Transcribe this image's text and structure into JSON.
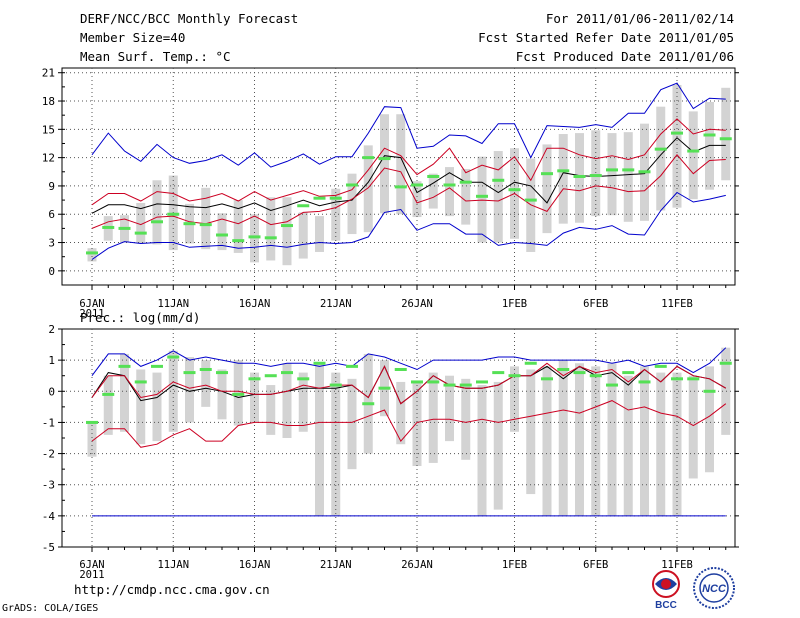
{
  "header": {
    "title": "DERF/NCC/BCC Monthly Forecast",
    "member_size": "Member Size=40",
    "variable": "Mean Surf. Temp.: °C",
    "forecast_period": "For 2011/01/06-2011/02/14",
    "refer_date": "Fcst Started Refer Date 2011/01/05",
    "produced_date": "Fcst Produced Date 2011/01/06"
  },
  "footer": {
    "url": "http://cmdp.ncc.cma.gov.cn",
    "credit": "GrADS: COLA/IGES",
    "logo_bcc": "BCC",
    "logo_ncc": "NCC"
  },
  "colors": {
    "spread": "#d3d3d3",
    "envelope": "#0000cc",
    "quartile": "#cc0022",
    "mean": "#000000",
    "member_mark": "#55e055",
    "grid": "#555555"
  },
  "chart_data": [
    {
      "type": "line",
      "title": "Mean Surf. Temp.: °C",
      "x_tick_labels": [
        "6JAN",
        "11JAN",
        "16JAN",
        "21JAN",
        "26JAN",
        "1FEB",
        "6FEB",
        "11FEB"
      ],
      "x_tick_index": [
        0,
        5,
        10,
        15,
        20,
        26,
        31,
        36
      ],
      "x_sublabel": "2011",
      "ylim": [
        -1.5,
        21.5
      ],
      "yticks": [
        0,
        3,
        6,
        9,
        12,
        15,
        18,
        21
      ],
      "grid": true,
      "series": [
        {
          "name": "max",
          "color_key": "envelope",
          "values": [
            12.3,
            14.6,
            12.7,
            11.6,
            13.4,
            12.0,
            11.4,
            11.7,
            12.3,
            11.2,
            12.5,
            11.0,
            11.6,
            12.4,
            11.3,
            12.1,
            12.1,
            14.6,
            17.4,
            17.3,
            13.0,
            13.2,
            14.4,
            14.3,
            13.5,
            15.6,
            15.6,
            12.0,
            15.4,
            15.3,
            15.2,
            15.5,
            15.2,
            16.7,
            16.7,
            19.2,
            19.9,
            17.2,
            18.3,
            18.2
          ]
        },
        {
          "name": "upper",
          "color_key": "quartile",
          "values": [
            7.0,
            8.2,
            8.2,
            7.4,
            8.4,
            8.2,
            7.4,
            7.7,
            8.2,
            7.4,
            8.4,
            7.5,
            8.0,
            8.5,
            7.9,
            8.0,
            8.6,
            10.7,
            13.0,
            12.2,
            10.2,
            11.3,
            13.0,
            10.4,
            11.2,
            10.7,
            12.1,
            9.6,
            13.0,
            13.0,
            12.3,
            11.9,
            12.2,
            11.8,
            12.3,
            14.5,
            16.1,
            14.5,
            15.0,
            14.9
          ]
        },
        {
          "name": "mean",
          "color_key": "mean",
          "values": [
            6.1,
            7.0,
            7.0,
            6.6,
            7.1,
            7.0,
            6.8,
            6.7,
            7.1,
            6.6,
            7.2,
            6.4,
            6.9,
            7.5,
            6.9,
            7.3,
            7.5,
            9.4,
            12.2,
            12.0,
            8.3,
            9.3,
            10.4,
            9.4,
            9.4,
            8.3,
            9.4,
            9.0,
            7.2,
            10.4,
            10.1,
            10.0,
            10.1,
            10.2,
            10.3,
            12.3,
            14.1,
            12.6,
            13.3,
            13.3
          ]
        },
        {
          "name": "lower",
          "color_key": "quartile",
          "values": [
            4.5,
            5.2,
            5.5,
            4.9,
            5.7,
            5.8,
            5.2,
            5.0,
            5.5,
            5.0,
            5.8,
            4.9,
            5.2,
            6.2,
            6.3,
            6.7,
            7.6,
            8.8,
            10.9,
            10.5,
            7.2,
            7.8,
            8.8,
            7.4,
            7.5,
            7.4,
            8.2,
            7.0,
            6.3,
            8.7,
            8.5,
            9.0,
            8.8,
            8.4,
            8.5,
            10.1,
            12.3,
            10.3,
            11.7,
            11.8
          ]
        },
        {
          "name": "min",
          "color_key": "envelope",
          "values": [
            1.2,
            2.4,
            3.1,
            2.9,
            3.0,
            3.0,
            2.5,
            2.6,
            2.7,
            2.4,
            2.5,
            2.7,
            2.5,
            2.8,
            3.0,
            2.9,
            3.0,
            3.6,
            6.2,
            6.5,
            4.3,
            5.0,
            5.0,
            3.9,
            3.9,
            2.7,
            3.0,
            2.9,
            2.7,
            4.0,
            4.6,
            4.4,
            4.8,
            3.9,
            3.8,
            6.4,
            8.3,
            7.3,
            7.6,
            8.0
          ]
        }
      ],
      "spread_bars": [
        [
          1.0,
          2.4
        ],
        [
          3.2,
          5.8
        ],
        [
          3.0,
          5.9
        ],
        [
          2.9,
          7.2
        ],
        [
          2.8,
          9.6
        ],
        [
          2.2,
          10.1
        ],
        [
          2.9,
          7.1
        ],
        [
          2.3,
          8.8
        ],
        [
          2.2,
          6.1
        ],
        [
          1.9,
          7.5
        ],
        [
          0.9,
          6.0
        ],
        [
          1.1,
          7.8
        ],
        [
          0.6,
          7.8
        ],
        [
          1.3,
          6.2
        ],
        [
          2.0,
          5.8
        ],
        [
          3.2,
          8.7
        ],
        [
          3.9,
          10.3
        ],
        [
          4.1,
          13.3
        ],
        [
          6.1,
          16.6
        ],
        [
          6.0,
          16.6
        ],
        [
          5.7,
          9.5
        ],
        [
          6.6,
          10.3
        ],
        [
          5.8,
          11.0
        ],
        [
          4.9,
          10.8
        ],
        [
          3.0,
          12.1
        ],
        [
          3.0,
          12.7
        ],
        [
          3.4,
          13.0
        ],
        [
          2.0,
          11.9
        ],
        [
          4.0,
          13.4
        ],
        [
          5.0,
          14.5
        ],
        [
          5.1,
          14.6
        ],
        [
          5.8,
          14.9
        ],
        [
          5.9,
          14.6
        ],
        [
          5.2,
          14.7
        ],
        [
          5.3,
          15.6
        ],
        [
          6.4,
          17.4
        ],
        [
          6.7,
          19.7
        ],
        [
          7.6,
          16.9
        ],
        [
          8.6,
          17.9
        ],
        [
          9.6,
          19.4
        ]
      ],
      "member_marks": [
        1.9,
        4.6,
        4.5,
        4.0,
        5.2,
        6.0,
        5.0,
        4.9,
        3.8,
        3.2,
        3.6,
        3.5,
        4.8,
        6.9,
        7.7,
        7.7,
        9.1,
        12.0,
        11.9,
        8.9,
        9.1,
        10.0,
        9.1,
        9.4,
        7.9,
        9.6,
        8.6,
        7.5,
        10.3,
        10.6,
        10.0,
        10.1,
        10.7,
        10.7,
        10.5,
        12.9,
        14.6,
        12.7,
        14.4,
        14.0
      ]
    },
    {
      "type": "line",
      "title": "Prec.: log(mm/d)",
      "x_tick_labels": [
        "6JAN",
        "11JAN",
        "16JAN",
        "21JAN",
        "26JAN",
        "1FEB",
        "6FEB",
        "11FEB"
      ],
      "x_tick_index": [
        0,
        5,
        10,
        15,
        20,
        26,
        31,
        36
      ],
      "x_sublabel": "2011",
      "ylim": [
        -5,
        2
      ],
      "yticks": [
        -5,
        -4,
        -3,
        -2,
        -1,
        0,
        1,
        2
      ],
      "grid": true,
      "series": [
        {
          "name": "max",
          "color_key": "envelope",
          "values": [
            0.5,
            1.2,
            1.2,
            0.8,
            1.0,
            1.3,
            1.0,
            1.1,
            1.0,
            0.9,
            0.9,
            0.8,
            0.9,
            0.9,
            0.8,
            0.9,
            0.8,
            1.2,
            1.1,
            0.9,
            0.7,
            1.0,
            1.0,
            1.0,
            1.0,
            1.1,
            1.1,
            1.0,
            1.0,
            1.0,
            1.0,
            1.0,
            0.9,
            1.0,
            0.8,
            0.9,
            0.9,
            0.6,
            0.9,
            1.4
          ]
        },
        {
          "name": "mean",
          "color_key": "mean",
          "values": [
            -0.2,
            0.6,
            0.5,
            -0.3,
            -0.2,
            0.2,
            0.0,
            0.1,
            0.0,
            -0.2,
            -0.1,
            -0.1,
            0.0,
            0.1,
            0.1,
            0.1,
            0.2,
            -0.2,
            0.8,
            -0.4,
            0.0,
            0.5,
            0.2,
            0.1,
            0.1,
            0.2,
            0.5,
            0.5,
            0.8,
            0.4,
            0.8,
            0.5,
            0.6,
            0.2,
            0.7,
            0.3,
            0.8,
            0.5,
            0.4,
            0.1
          ]
        },
        {
          "name": "upper",
          "color_key": "quartile",
          "values": [
            -0.2,
            0.5,
            0.5,
            -0.2,
            -0.1,
            0.3,
            0.1,
            0.2,
            0.0,
            0.0,
            -0.1,
            -0.1,
            0.0,
            0.2,
            0.1,
            0.2,
            0.2,
            -0.2,
            0.8,
            -0.4,
            0.0,
            0.5,
            0.2,
            0.1,
            0.1,
            0.2,
            0.5,
            0.5,
            0.9,
            0.5,
            0.8,
            0.6,
            0.7,
            0.3,
            0.7,
            0.3,
            0.8,
            0.5,
            0.4,
            0.1
          ]
        },
        {
          "name": "lower",
          "color_key": "quartile",
          "values": [
            -1.6,
            -1.2,
            -1.2,
            -1.8,
            -1.7,
            -1.4,
            -1.2,
            -1.6,
            -1.6,
            -1.1,
            -1.0,
            -1.0,
            -1.1,
            -1.1,
            -1.0,
            -1.0,
            -1.0,
            -0.8,
            -0.6,
            -1.6,
            -1.0,
            -0.9,
            -0.9,
            -1.0,
            -0.9,
            -1.0,
            -0.9,
            -0.8,
            -0.7,
            -0.6,
            -0.7,
            -0.5,
            -0.3,
            -0.6,
            -0.5,
            -0.7,
            -0.8,
            -1.1,
            -0.8,
            -0.4
          ]
        },
        {
          "name": "min",
          "color_key": "envelope",
          "values": [
            -4,
            -4,
            -4,
            -4,
            -4,
            -4,
            -4,
            -4,
            -4,
            -4,
            -4,
            -4,
            -4,
            -4,
            -4,
            -4,
            -4,
            -4,
            -4,
            -4,
            -4,
            -4,
            -4,
            -4,
            -4,
            -4,
            -4,
            -4,
            -4,
            -4,
            -4,
            -4,
            -4,
            -4,
            -4,
            -4,
            -4,
            -4,
            -4,
            -4
          ]
        }
      ],
      "spread_bars": [
        [
          -2.1,
          -1.0
        ],
        [
          -1.4,
          0.5
        ],
        [
          -1.3,
          1.2
        ],
        [
          -1.7,
          0.7
        ],
        [
          -1.6,
          0.6
        ],
        [
          -1.3,
          1.3
        ],
        [
          -1.0,
          1.1
        ],
        [
          -0.5,
          1.0
        ],
        [
          -0.9,
          0.7
        ],
        [
          -1.1,
          1.0
        ],
        [
          -1.0,
          0.6
        ],
        [
          -1.4,
          0.2
        ],
        [
          -1.5,
          0.9
        ],
        [
          -1.3,
          0.6
        ],
        [
          -4.0,
          0.9
        ],
        [
          -4.0,
          0.6
        ],
        [
          -2.5,
          0.4
        ],
        [
          -2.0,
          1.2
        ],
        [
          -0.8,
          1.0
        ],
        [
          -1.7,
          0.3
        ],
        [
          -2.4,
          0.3
        ],
        [
          -2.3,
          0.6
        ],
        [
          -1.6,
          0.5
        ],
        [
          -2.2,
          0.4
        ],
        [
          -4.0,
          0.2
        ],
        [
          -3.8,
          0.3
        ],
        [
          -1.3,
          0.8
        ],
        [
          -3.3,
          0.7
        ],
        [
          -4.0,
          0.8
        ],
        [
          -4.0,
          1.0
        ],
        [
          -4.0,
          0.9
        ],
        [
          -4.0,
          0.8
        ],
        [
          -4.0,
          0.9
        ],
        [
          -4.0,
          0.5
        ],
        [
          -4.0,
          0.8
        ],
        [
          -4.0,
          0.6
        ],
        [
          -4.0,
          0.6
        ],
        [
          -2.8,
          0.5
        ],
        [
          -2.6,
          0.8
        ],
        [
          -1.4,
          1.4
        ]
      ],
      "member_marks": [
        -1.0,
        -0.1,
        0.8,
        0.3,
        0.8,
        1.1,
        0.6,
        0.7,
        0.6,
        -0.1,
        0.4,
        0.5,
        0.6,
        0.4,
        0.9,
        0.2,
        0.8,
        -0.4,
        0.1,
        0.7,
        0.3,
        0.3,
        0.2,
        0.2,
        0.3,
        0.6,
        0.5,
        0.9,
        0.4,
        0.7,
        0.6,
        0.5,
        0.2,
        0.6,
        0.3,
        0.8,
        0.4,
        0.4,
        0.0,
        0.9
      ]
    }
  ]
}
